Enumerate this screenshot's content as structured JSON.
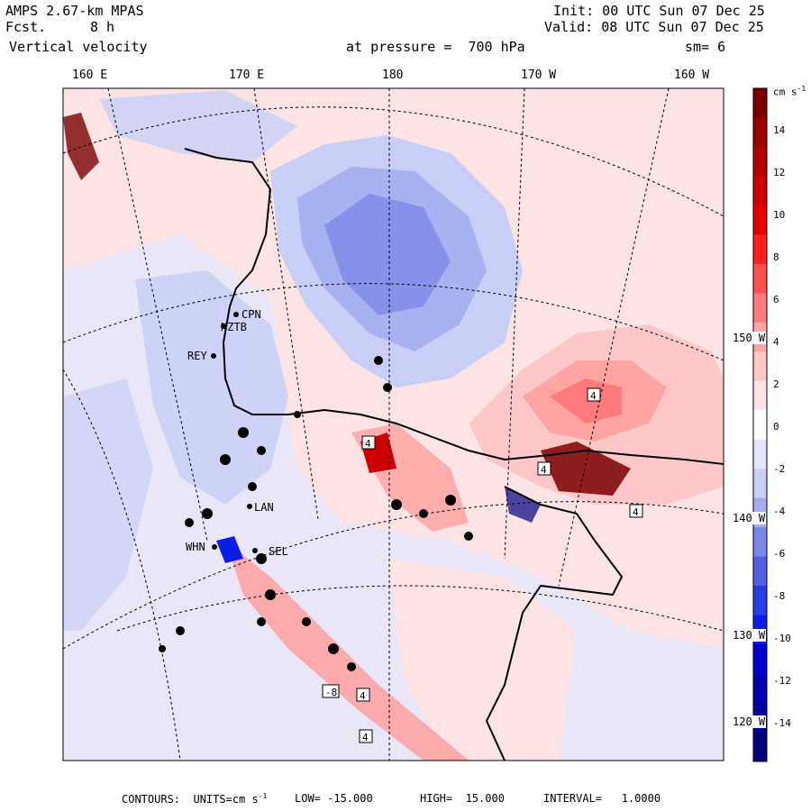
{
  "header": {
    "model": "AMPS 2.67-km MPAS",
    "fcst_label": "Fcst.",
    "fcst_value": "8 h",
    "field": "Vertical velocity",
    "init": "Init: 00 UTC Sun 07 Dec 25",
    "valid": "Valid: 08 UTC Sun 07 Dec 25",
    "pressure": "at pressure =  700 hPa",
    "smoothing": "sm= 6"
  },
  "longitude_labels": [
    "160 E",
    "170 E",
    "180",
    "170 W",
    "160 W"
  ],
  "latitude_labels": [
    "150 W",
    "140 W",
    "130 W",
    "120 W"
  ],
  "stations": [
    "CPN",
    "NZTB",
    "REY",
    "LAN",
    "WHN",
    "SEL"
  ],
  "extrema_markers": [
    "4",
    "4",
    "4",
    "4",
    "-8",
    "4",
    "4"
  ],
  "colorbar": {
    "units": "cm s",
    "units_exp": "-1",
    "ticks": [
      "14",
      "12",
      "10",
      "8",
      "6",
      "4",
      "2",
      "0",
      "-2",
      "-4",
      "-6",
      "-8",
      "-10",
      "-12",
      "-14"
    ],
    "colors": [
      "#7a0000",
      "#990000",
      "#b30000",
      "#cc0000",
      "#e60000",
      "#ff2020",
      "#ff5050",
      "#ff7b7b",
      "#ffa3a3",
      "#ffc8c8",
      "#fde3e3",
      "#ffffff",
      "#e3e6fb",
      "#c8cff6",
      "#a3adef",
      "#7b87e8",
      "#5060e0",
      "#2a3de0",
      "#0a1ee6",
      "#0000cc",
      "#0000b3",
      "#000099",
      "#00007a"
    ]
  },
  "footer": {
    "contours": "CONTOURS:  UNITS=cm s",
    "units_exp": "-1",
    "low": "LOW= -15.000",
    "high": "HIGH=  15.000",
    "interval": "INTERVAL=   1.0000"
  }
}
